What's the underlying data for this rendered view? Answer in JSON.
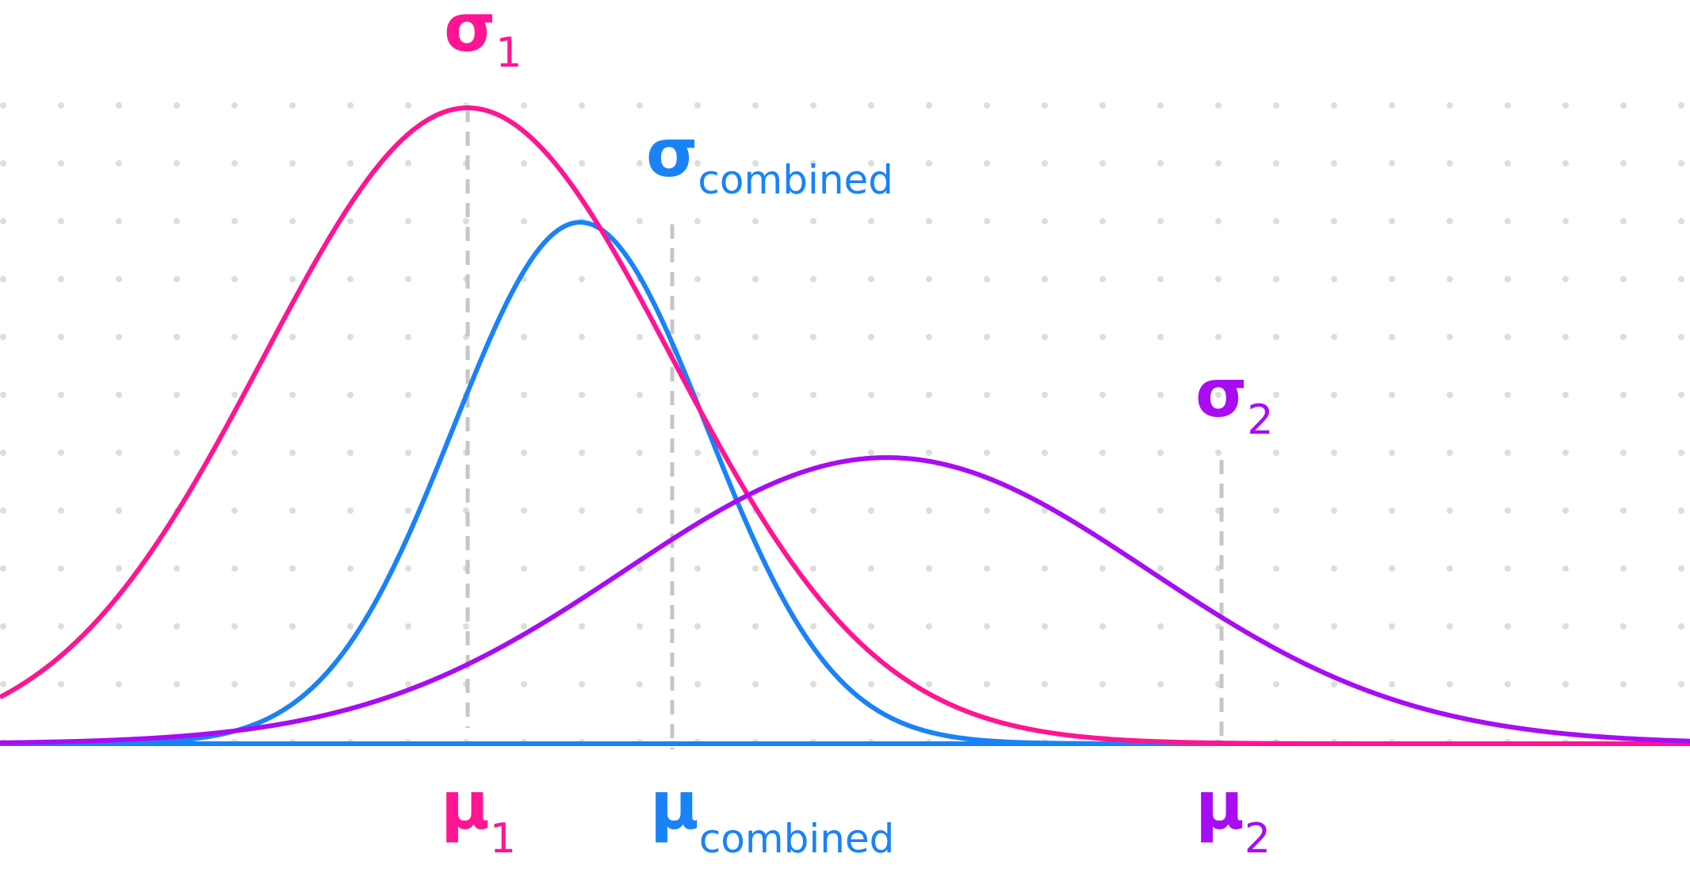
{
  "colors": {
    "curve_1": "#ff1493",
    "curve_combined": "#1a82f7",
    "curve_2": "#a80cf3",
    "guide": "#c6c6c6",
    "grid_dot": "#dddddd",
    "background": "#ffffff"
  },
  "labels": {
    "sigma_1": {
      "symbol": "σ",
      "sub": "1"
    },
    "sigma_combined": {
      "symbol": "σ",
      "sub": "combined"
    },
    "sigma_2": {
      "symbol": "σ",
      "sub": "2"
    },
    "mu_1": {
      "symbol": "μ",
      "sub": "1"
    },
    "mu_combined": {
      "symbol": "μ",
      "sub": "combined"
    },
    "mu_2": {
      "symbol": "μ",
      "sub": "2"
    }
  },
  "chart_data": {
    "type": "line",
    "series": [
      {
        "key": "dist_1",
        "mean": 0.0,
        "sd": 1.0,
        "peak": 1.0
      },
      {
        "key": "dist_combined",
        "mean": 0.55,
        "sd": 0.62,
        "peak": 0.82
      },
      {
        "key": "dist_2",
        "mean": 2.05,
        "sd": 1.28,
        "peak": 0.45
      }
    ],
    "grid": true,
    "guides_at_means": true
  }
}
